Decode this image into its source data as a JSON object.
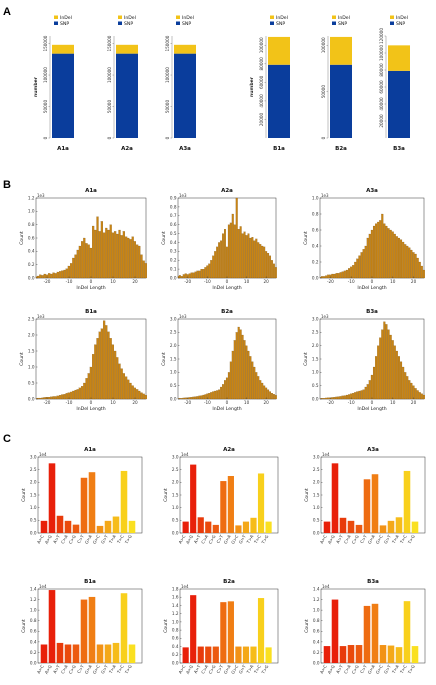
{
  "panel_labels": [
    "A",
    "B",
    "C"
  ],
  "chart_data": [
    {
      "panel": "A",
      "type": "bar",
      "stacked": true,
      "legend": [
        "InDel",
        "SNP"
      ],
      "colors": {
        "InDel": "#f2c318",
        "SNP": "#0a3d9c"
      },
      "ylabel": "number",
      "groups": [
        {
          "yticks": [
            0,
            50000,
            100000,
            150000
          ],
          "ytick_labels": [
            "0",
            "50000",
            "100000",
            "150000"
          ],
          "ylim": [
            0,
            162000
          ],
          "samples": [
            {
              "name": "A1a",
              "SNP": 134000,
              "InDel": 14000
            },
            {
              "name": "A2a",
              "SNP": 134000,
              "InDel": 14000
            },
            {
              "name": "A3a",
              "SNP": 134000,
              "InDel": 14000
            }
          ]
        },
        {
          "yticks": [
            20000,
            40000,
            60000,
            80000,
            100000,
            120000
          ],
          "ytick_labels": [
            "20000",
            "40000",
            "60000",
            "80000",
            "100000",
            "120000"
          ],
          "ylim": [
            0,
            120000
          ],
          "samples": [
            {
              "name": "B1a",
              "SNP": 79000,
              "InDel": 30000,
              "yticks": [
                20000,
                40000,
                60000,
                80000,
                100000
              ],
              "ytick_labels": [
                "20000",
                "40000",
                "60000",
                "80000",
                "100000"
              ],
              "ylim": [
                0,
                110000
              ]
            },
            {
              "name": "B2a",
              "SNP": 79000,
              "InDel": 30000,
              "yticks": [
                0,
                50000,
                100000
              ],
              "ytick_labels": [
                "0",
                "50000",
                "100000"
              ],
              "ylim": [
                0,
                110000
              ]
            },
            {
              "name": "B3a",
              "SNP": 79000,
              "InDel": 30000,
              "yticks": [
                20000,
                40000,
                60000,
                80000,
                100000,
                120000
              ],
              "ytick_labels": [
                "20000",
                "40000",
                "60000",
                "80000",
                "100000",
                "120000"
              ],
              "ylim": [
                0,
                120000
              ]
            }
          ]
        }
      ]
    },
    {
      "panel": "B",
      "type": "bar",
      "xlabel": "InDel Length",
      "ylabel": "Count",
      "multiplier": "1e3",
      "x": [
        -25,
        -24,
        -23,
        -22,
        -21,
        -20,
        -19,
        -18,
        -17,
        -16,
        -15,
        -14,
        -13,
        -12,
        -11,
        -10,
        -9,
        -8,
        -7,
        -6,
        -5,
        -4,
        -3,
        -2,
        -1,
        0,
        1,
        2,
        3,
        4,
        5,
        6,
        7,
        8,
        9,
        10,
        11,
        12,
        13,
        14,
        15,
        16,
        17,
        18,
        19,
        20,
        21,
        22,
        23,
        24,
        25
      ],
      "xticks": [
        -20,
        -10,
        0,
        10,
        20
      ],
      "xlim": [
        -25,
        25
      ],
      "bar_color": "#c88414",
      "plots": [
        {
          "title": "A1a",
          "ylim": [
            0,
            1.2
          ],
          "yticks": [
            0.0,
            0.2,
            0.4,
            0.6,
            0.8,
            1.0,
            1.2
          ],
          "ytick_labels": [
            "0.0",
            "0.2",
            "0.4",
            "0.6",
            "0.8",
            "1.0",
            "1.2"
          ],
          "values": [
            0.02,
            0.03,
            0.05,
            0.04,
            0.06,
            0.05,
            0.07,
            0.06,
            0.08,
            0.07,
            0.09,
            0.1,
            0.11,
            0.12,
            0.14,
            0.18,
            0.22,
            0.3,
            0.35,
            0.42,
            0.48,
            0.55,
            0.6,
            0.52,
            0.5,
            0.45,
            0.78,
            0.72,
            0.92,
            0.7,
            0.85,
            0.68,
            0.75,
            0.72,
            0.8,
            0.68,
            0.7,
            0.66,
            0.72,
            0.64,
            0.7,
            0.62,
            0.6,
            0.58,
            0.62,
            0.55,
            0.5,
            0.48,
            0.35,
            0.26,
            0.22
          ]
        },
        {
          "title": "A2a",
          "ylim": [
            0,
            0.9
          ],
          "yticks": [
            0.0,
            0.1,
            0.2,
            0.3,
            0.4,
            0.5,
            0.6,
            0.7,
            0.8,
            0.9
          ],
          "ytick_labels": [
            "0.0",
            "0.1",
            "0.2",
            "0.3",
            "0.4",
            "0.5",
            "0.6",
            "0.7",
            "0.8",
            "0.9"
          ],
          "values": [
            0.02,
            0.03,
            0.02,
            0.04,
            0.05,
            0.04,
            0.05,
            0.06,
            0.06,
            0.07,
            0.08,
            0.08,
            0.1,
            0.1,
            0.12,
            0.14,
            0.16,
            0.2,
            0.25,
            0.3,
            0.35,
            0.4,
            0.42,
            0.5,
            0.55,
            0.35,
            0.6,
            0.62,
            0.72,
            0.6,
            0.9,
            0.55,
            0.58,
            0.5,
            0.52,
            0.48,
            0.5,
            0.45,
            0.46,
            0.42,
            0.44,
            0.4,
            0.38,
            0.36,
            0.35,
            0.3,
            0.28,
            0.25,
            0.2,
            0.16,
            0.12
          ]
        },
        {
          "title": "A3a",
          "ylim": [
            0,
            1.0
          ],
          "yticks": [
            0.0,
            0.2,
            0.4,
            0.6,
            0.8,
            1.0
          ],
          "ytick_labels": [
            "0.0",
            "0.2",
            "0.4",
            "0.6",
            "0.8",
            "1.0"
          ],
          "values": [
            0.01,
            0.02,
            0.02,
            0.03,
            0.04,
            0.04,
            0.05,
            0.05,
            0.06,
            0.06,
            0.07,
            0.08,
            0.09,
            0.1,
            0.12,
            0.14,
            0.16,
            0.2,
            0.24,
            0.28,
            0.32,
            0.36,
            0.4,
            0.5,
            0.55,
            0.6,
            0.65,
            0.68,
            0.7,
            0.72,
            0.8,
            0.68,
            0.65,
            0.62,
            0.6,
            0.58,
            0.55,
            0.52,
            0.5,
            0.48,
            0.45,
            0.42,
            0.4,
            0.38,
            0.35,
            0.32,
            0.3,
            0.25,
            0.2,
            0.15,
            0.1
          ]
        },
        {
          "title": "B1a",
          "ylim": [
            0,
            2.5
          ],
          "yticks": [
            0.0,
            0.5,
            1.0,
            1.5,
            2.0,
            2.5
          ],
          "ytick_labels": [
            "0.0",
            "0.5",
            "1.0",
            "1.5",
            "2.0",
            "2.5"
          ],
          "values": [
            0.02,
            0.03,
            0.03,
            0.04,
            0.05,
            0.06,
            0.06,
            0.07,
            0.08,
            0.08,
            0.1,
            0.12,
            0.14,
            0.15,
            0.18,
            0.2,
            0.22,
            0.25,
            0.28,
            0.3,
            0.35,
            0.4,
            0.5,
            0.65,
            0.8,
            1.0,
            1.4,
            1.7,
            1.9,
            2.1,
            2.2,
            2.45,
            2.3,
            2.1,
            1.9,
            1.7,
            1.5,
            1.3,
            1.1,
            0.95,
            0.8,
            0.7,
            0.6,
            0.5,
            0.42,
            0.35,
            0.3,
            0.25,
            0.2,
            0.16,
            0.12
          ]
        },
        {
          "title": "B2a",
          "ylim": [
            0,
            3.0
          ],
          "yticks": [
            0.0,
            0.5,
            1.0,
            1.5,
            2.0,
            2.5,
            3.0
          ],
          "ytick_labels": [
            "0.0",
            "0.5",
            "1.0",
            "1.5",
            "2.0",
            "2.5",
            "3.0"
          ],
          "values": [
            0.02,
            0.03,
            0.03,
            0.04,
            0.05,
            0.05,
            0.06,
            0.07,
            0.08,
            0.09,
            0.1,
            0.12,
            0.13,
            0.15,
            0.17,
            0.2,
            0.22,
            0.25,
            0.28,
            0.3,
            0.32,
            0.35,
            0.45,
            0.55,
            0.7,
            0.8,
            1.0,
            1.4,
            1.8,
            2.2,
            2.5,
            2.7,
            2.6,
            2.4,
            2.2,
            2.0,
            1.8,
            1.6,
            1.4,
            1.2,
            1.0,
            0.85,
            0.7,
            0.6,
            0.5,
            0.42,
            0.35,
            0.28,
            0.22,
            0.18,
            0.14
          ]
        },
        {
          "title": "B3a",
          "ylim": [
            0,
            3.0
          ],
          "yticks": [
            0.0,
            0.5,
            1.0,
            1.5,
            2.0,
            2.5,
            3.0
          ],
          "ytick_labels": [
            "0.0",
            "0.5",
            "1.0",
            "1.5",
            "2.0",
            "2.5",
            "3.0"
          ],
          "values": [
            0.02,
            0.03,
            0.03,
            0.04,
            0.05,
            0.05,
            0.06,
            0.07,
            0.08,
            0.09,
            0.1,
            0.12,
            0.13,
            0.15,
            0.17,
            0.2,
            0.22,
            0.25,
            0.28,
            0.3,
            0.32,
            0.35,
            0.45,
            0.55,
            0.7,
            0.9,
            1.2,
            1.6,
            2.0,
            2.3,
            2.6,
            2.9,
            2.8,
            2.6,
            2.4,
            2.2,
            2.0,
            1.8,
            1.6,
            1.4,
            1.2,
            1.0,
            0.85,
            0.7,
            0.6,
            0.5,
            0.4,
            0.32,
            0.25,
            0.2,
            0.15
          ]
        }
      ]
    },
    {
      "panel": "C",
      "type": "bar",
      "ylabel": "Count",
      "multiplier": "1e4",
      "categories": [
        "A>C",
        "A>G",
        "A>T",
        "C>A",
        "C>G",
        "C>T",
        "G>A",
        "G>C",
        "G>T",
        "T>A",
        "T>C",
        "T>G"
      ],
      "colors": [
        "#e8200a",
        "#e8200a",
        "#e83a0a",
        "#ea4a0c",
        "#ec5a10",
        "#ee6c12",
        "#f07e14",
        "#f29216",
        "#f4a818",
        "#f6bc1a",
        "#f8d01c",
        "#fae020"
      ],
      "plots": [
        {
          "title": "A1a",
          "ylim": [
            0,
            3.0
          ],
          "yticks": [
            0.0,
            0.5,
            1.0,
            1.5,
            2.0,
            2.5,
            3.0
          ],
          "ytick_labels": [
            "0.0",
            "0.5",
            "1.0",
            "1.5",
            "2.0",
            "2.5",
            "3.0"
          ],
          "values": [
            0.48,
            2.75,
            0.68,
            0.48,
            0.33,
            2.18,
            2.4,
            0.28,
            0.48,
            0.65,
            2.45,
            0.48
          ]
        },
        {
          "title": "A2a",
          "ylim": [
            0,
            3.0
          ],
          "yticks": [
            0.0,
            0.5,
            1.0,
            1.5,
            2.0,
            2.5,
            3.0
          ],
          "ytick_labels": [
            "0.0",
            "0.5",
            "1.0",
            "1.5",
            "2.0",
            "2.5",
            "3.0"
          ],
          "values": [
            0.45,
            2.7,
            0.62,
            0.45,
            0.32,
            2.05,
            2.25,
            0.3,
            0.45,
            0.6,
            2.35,
            0.45
          ]
        },
        {
          "title": "A3a",
          "ylim": [
            0,
            3.0
          ],
          "yticks": [
            0.0,
            0.5,
            1.0,
            1.5,
            2.0,
            2.5,
            3.0
          ],
          "ytick_labels": [
            "0.0",
            "0.5",
            "1.0",
            "1.5",
            "2.0",
            "2.5",
            "3.0"
          ],
          "values": [
            0.45,
            2.75,
            0.6,
            0.48,
            0.32,
            2.12,
            2.32,
            0.3,
            0.48,
            0.62,
            2.45,
            0.45
          ]
        },
        {
          "title": "B1a",
          "ylim": [
            0,
            1.4
          ],
          "yticks": [
            0.0,
            0.2,
            0.4,
            0.6,
            0.8,
            1.0,
            1.2,
            1.4
          ],
          "ytick_labels": [
            "0.0",
            "0.2",
            "0.4",
            "0.6",
            "0.8",
            "1.0",
            "1.2",
            "1.4"
          ],
          "values": [
            0.35,
            1.38,
            0.38,
            0.35,
            0.35,
            1.2,
            1.25,
            0.35,
            0.35,
            0.38,
            1.32,
            0.35
          ]
        },
        {
          "title": "B2a",
          "ylim": [
            0,
            1.8
          ],
          "yticks": [
            0.0,
            0.2,
            0.4,
            0.6,
            0.8,
            1.0,
            1.2,
            1.4,
            1.6,
            1.8
          ],
          "ytick_labels": [
            "0.0",
            "0.2",
            "0.4",
            "0.6",
            "0.8",
            "1.0",
            "1.2",
            "1.4",
            "1.6",
            "1.8"
          ],
          "values": [
            0.38,
            1.65,
            0.4,
            0.4,
            0.4,
            1.48,
            1.5,
            0.4,
            0.4,
            0.4,
            1.58,
            0.38
          ]
        },
        {
          "title": "B3a",
          "ylim": [
            0,
            1.4
          ],
          "yticks": [
            0.0,
            0.2,
            0.4,
            0.6,
            0.8,
            1.0,
            1.2,
            1.4
          ],
          "ytick_labels": [
            "0.0",
            "0.2",
            "0.4",
            "0.6",
            "0.8",
            "1.0",
            "1.2",
            "1.4"
          ],
          "values": [
            0.32,
            1.2,
            0.32,
            0.34,
            0.34,
            1.08,
            1.12,
            0.34,
            0.33,
            0.3,
            1.17,
            0.32
          ]
        }
      ]
    }
  ]
}
